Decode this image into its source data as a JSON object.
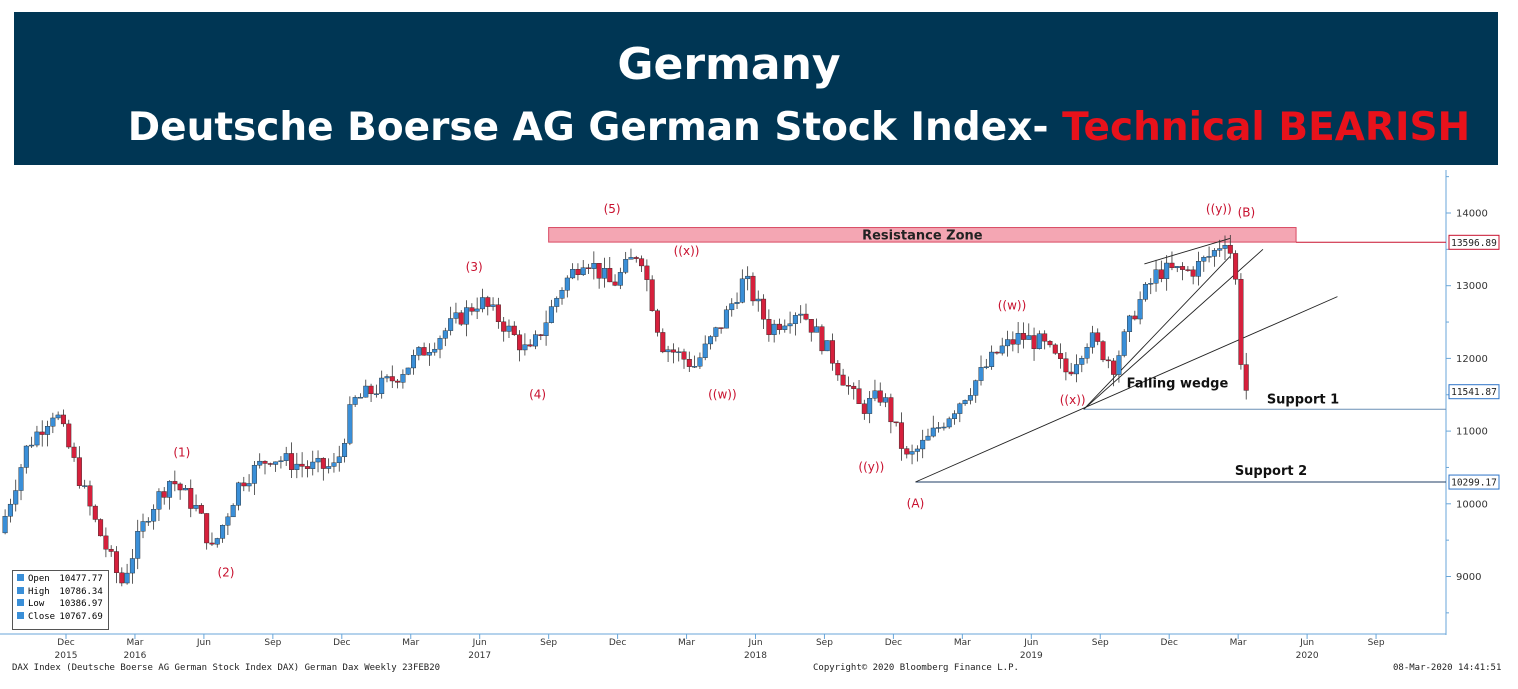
{
  "header": {
    "title": "Germany",
    "subtitle_prefix": "Deutsche Boerse AG German Stock Index- ",
    "subtitle_highlight": "Technical BEARISH",
    "background_color": "#003654",
    "highlight_color": "#e8121b"
  },
  "ohlc_box": {
    "open_label": "Open",
    "open_value": "10477.77",
    "high_label": "High",
    "high_value": "10786.34",
    "low_label": "Low",
    "low_value": "10386.97",
    "close_label": "Close",
    "close_value": "10767.69"
  },
  "footer": {
    "left": "DAX Index (Deutsche Boerse AG German Stock Index DAX) German Dax  Weekly 23FEB20",
    "center": "Copyright© 2020 Bloomberg Finance L.P.",
    "right": "08-Mar-2020 14:41:51"
  },
  "chart_data": {
    "type": "candlestick",
    "ylim": [
      8200,
      14500
    ],
    "y_ticks": [
      9000,
      10000,
      11000,
      12000,
      13000,
      14000
    ],
    "x_ticks": [
      {
        "label": "Dec",
        "t": 2015.92
      },
      {
        "label": "Mar",
        "t": 2016.17
      },
      {
        "label": "Jun",
        "t": 2016.42
      },
      {
        "label": "Sep",
        "t": 2016.67
      },
      {
        "label": "Dec",
        "t": 2016.92
      },
      {
        "label": "Mar",
        "t": 2017.17
      },
      {
        "label": "Jun",
        "t": 2017.42
      },
      {
        "label": "Sep",
        "t": 2017.67
      },
      {
        "label": "Dec",
        "t": 2017.92
      },
      {
        "label": "Mar",
        "t": 2018.17
      },
      {
        "label": "Jun",
        "t": 2018.42
      },
      {
        "label": "Sep",
        "t": 2018.67
      },
      {
        "label": "Dec",
        "t": 2018.92
      },
      {
        "label": "Mar",
        "t": 2019.17
      },
      {
        "label": "Jun",
        "t": 2019.42
      },
      {
        "label": "Sep",
        "t": 2019.67
      },
      {
        "label": "Dec",
        "t": 2019.92
      },
      {
        "label": "Mar",
        "t": 2020.17
      },
      {
        "label": "Jun",
        "t": 2020.42
      },
      {
        "label": "Sep",
        "t": 2020.67
      }
    ],
    "year_labels": [
      {
        "label": "2015",
        "t": 2015.92
      },
      {
        "label": "2016",
        "t": 2016.17
      },
      {
        "label": "2017",
        "t": 2017.42
      },
      {
        "label": "2018",
        "t": 2018.42
      },
      {
        "label": "2019",
        "t": 2019.42
      },
      {
        "label": "2020",
        "t": 2020.42
      }
    ],
    "price_path": [
      {
        "t": 2015.68,
        "p": 9600
      },
      {
        "t": 2015.78,
        "p": 10800
      },
      {
        "t": 2015.88,
        "p": 11300
      },
      {
        "t": 2015.96,
        "p": 10450
      },
      {
        "t": 2016.02,
        "p": 9800
      },
      {
        "t": 2016.12,
        "p": 8900
      },
      {
        "t": 2016.22,
        "p": 9900
      },
      {
        "t": 2016.3,
        "p": 10350
      },
      {
        "t": 2016.4,
        "p": 9900
      },
      {
        "t": 2016.45,
        "p": 9350
      },
      {
        "t": 2016.55,
        "p": 10300
      },
      {
        "t": 2016.66,
        "p": 10650
      },
      {
        "t": 2016.8,
        "p": 10500
      },
      {
        "t": 2016.9,
        "p": 10500
      },
      {
        "t": 2016.96,
        "p": 11400
      },
      {
        "t": 2017.1,
        "p": 11700
      },
      {
        "t": 2017.3,
        "p": 12400
      },
      {
        "t": 2017.42,
        "p": 12800
      },
      {
        "t": 2017.5,
        "p": 12500
      },
      {
        "t": 2017.6,
        "p": 12050
      },
      {
        "t": 2017.72,
        "p": 13000
      },
      {
        "t": 2017.8,
        "p": 13400
      },
      {
        "t": 2017.9,
        "p": 13000
      },
      {
        "t": 2018.0,
        "p": 13500
      },
      {
        "t": 2018.08,
        "p": 12200
      },
      {
        "t": 2018.2,
        "p": 11900
      },
      {
        "t": 2018.3,
        "p": 12500
      },
      {
        "t": 2018.38,
        "p": 13100
      },
      {
        "t": 2018.47,
        "p": 12400
      },
      {
        "t": 2018.58,
        "p": 12700
      },
      {
        "t": 2018.7,
        "p": 12000
      },
      {
        "t": 2018.8,
        "p": 11300
      },
      {
        "t": 2018.88,
        "p": 11500
      },
      {
        "t": 2018.97,
        "p": 10600
      },
      {
        "t": 2019.05,
        "p": 10900
      },
      {
        "t": 2019.2,
        "p": 11600
      },
      {
        "t": 2019.3,
        "p": 12100
      },
      {
        "t": 2019.38,
        "p": 12300
      },
      {
        "t": 2019.46,
        "p": 12200
      },
      {
        "t": 2019.55,
        "p": 11800
      },
      {
        "t": 2019.63,
        "p": 12300
      },
      {
        "t": 2019.72,
        "p": 11900
      },
      {
        "t": 2019.8,
        "p": 12700
      },
      {
        "t": 2019.88,
        "p": 13200
      },
      {
        "t": 2020.0,
        "p": 13200
      },
      {
        "t": 2020.08,
        "p": 13450
      },
      {
        "t": 2020.13,
        "p": 13700
      },
      {
        "t": 2020.16,
        "p": 13100
      },
      {
        "t": 2020.18,
        "p": 12000
      },
      {
        "t": 2020.2,
        "p": 11550
      }
    ],
    "price_tags": [
      {
        "label": "13596.89",
        "value": 13596.89,
        "color": "#c8102e"
      },
      {
        "label": "11541.87",
        "value": 11541.87,
        "color": "#2d74c8"
      },
      {
        "label": "10299.17",
        "value": 10299.17,
        "color": "#2d74c8"
      }
    ],
    "resistance_zone": {
      "label": "Resistance Zone",
      "from": 13600,
      "to": 13800,
      "t_start": 2017.67,
      "t_end": 2020.38
    },
    "support_lines": [
      {
        "label": "Support 1",
        "value": 11300,
        "t_start": 2019.61
      },
      {
        "label": "Support 2",
        "value": 10299.17,
        "t_start": 2019.0
      }
    ],
    "trend_lines": [
      {
        "t1": 2019.0,
        "p1": 10300,
        "t2": 2020.53,
        "p2": 12850
      },
      {
        "t1": 2019.61,
        "p1": 11300,
        "t2": 2020.14,
        "p2": 13400
      },
      {
        "t1": 2019.83,
        "p1": 13300,
        "t2": 2020.14,
        "p2": 13650
      },
      {
        "t1": 2019.61,
        "p1": 11300,
        "t2": 2020.26,
        "p2": 13500
      }
    ],
    "annotations_red": [
      {
        "text": "(1)",
        "t": 2016.34,
        "p": 10650
      },
      {
        "text": "(2)",
        "t": 2016.5,
        "p": 9000
      },
      {
        "text": "(3)",
        "t": 2017.4,
        "p": 13200
      },
      {
        "text": "(4)",
        "t": 2017.63,
        "p": 11450
      },
      {
        "text": "(5)",
        "t": 2017.9,
        "p": 14000
      },
      {
        "text": "((x))",
        "t": 2018.17,
        "p": 13420
      },
      {
        "text": "((w))",
        "t": 2018.3,
        "p": 11450
      },
      {
        "text": "((y))",
        "t": 2018.84,
        "p": 10450
      },
      {
        "text": "(A)",
        "t": 2019.0,
        "p": 9950
      },
      {
        "text": "((w))",
        "t": 2019.35,
        "p": 12670
      },
      {
        "text": "((x))",
        "t": 2019.57,
        "p": 11370
      },
      {
        "text": "((y))",
        "t": 2020.1,
        "p": 14000
      },
      {
        "text": "(B)",
        "t": 2020.2,
        "p": 13950
      }
    ],
    "annotation_black": {
      "text": "Falling wedge",
      "t": 2019.95,
      "p": 11600
    }
  }
}
